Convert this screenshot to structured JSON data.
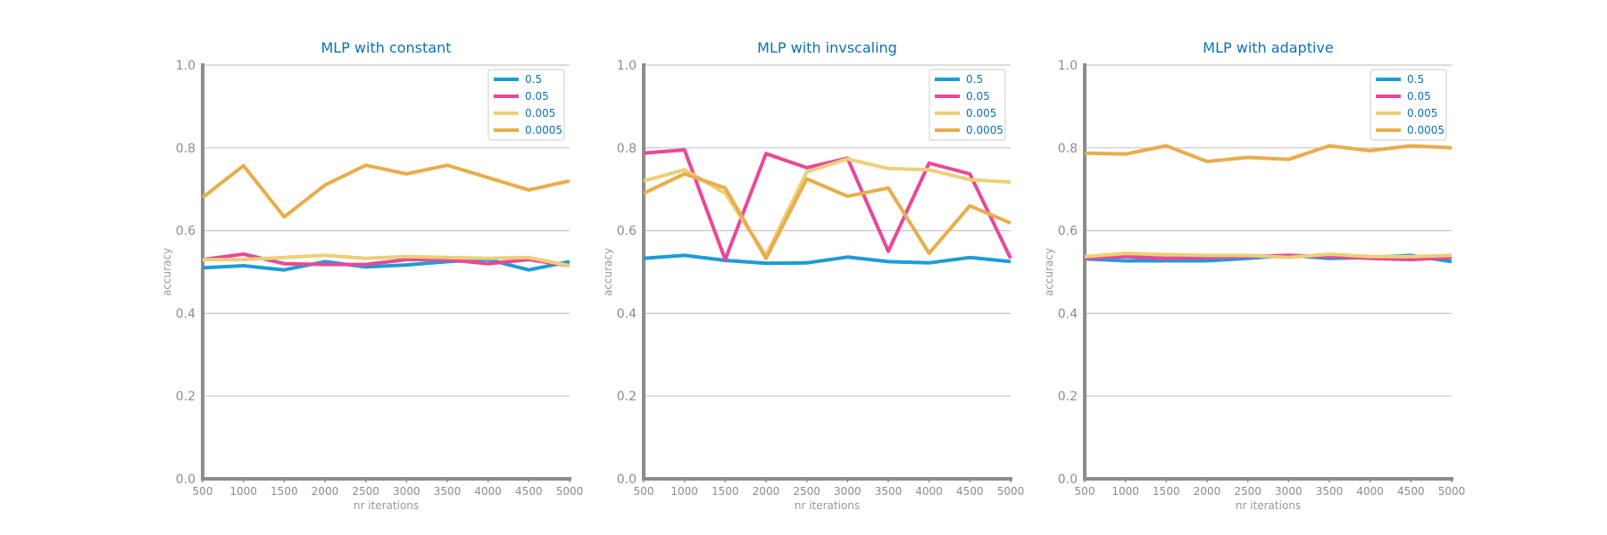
{
  "chart_data": [
    {
      "type": "line",
      "title": "MLP with constant",
      "xlabel": "nr iterations",
      "ylabel": "accuracy",
      "x": [
        500,
        1000,
        1500,
        2000,
        2500,
        3000,
        3500,
        4000,
        4500,
        5000
      ],
      "xlim": [
        500,
        5000
      ],
      "ylim": [
        0,
        1
      ],
      "yticks": [
        "0.0",
        "0.2",
        "0.4",
        "0.6",
        "0.8",
        "1.0"
      ],
      "grid": "horizontal",
      "legend": "top-right",
      "series": [
        {
          "name": "0.5",
          "color": "#1f9bd7",
          "values": [
            0.51,
            0.515,
            0.505,
            0.525,
            0.512,
            0.517,
            0.525,
            0.53,
            0.505,
            0.525
          ]
        },
        {
          "name": "0.05",
          "color": "#e8489a",
          "values": [
            0.53,
            0.543,
            0.52,
            0.518,
            0.518,
            0.53,
            0.53,
            0.52,
            0.53,
            0.515
          ]
        },
        {
          "name": "0.005",
          "color": "#ebd077",
          "values": [
            0.53,
            0.53,
            0.535,
            0.54,
            0.533,
            0.537,
            0.535,
            0.533,
            0.535,
            0.515
          ]
        },
        {
          "name": "0.0005",
          "color": "#e8ad4b",
          "values": [
            0.68,
            0.757,
            0.633,
            0.71,
            0.758,
            0.737,
            0.758,
            0.728,
            0.698,
            0.72
          ]
        }
      ]
    },
    {
      "type": "line",
      "title": "MLP with invscaling",
      "xlabel": "nr iterations",
      "ylabel": "accuracy",
      "x": [
        500,
        1000,
        1500,
        2000,
        2500,
        3000,
        3500,
        4000,
        4500,
        5000
      ],
      "xlim": [
        500,
        5000
      ],
      "ylim": [
        0,
        1
      ],
      "yticks": [
        "0.0",
        "0.2",
        "0.4",
        "0.6",
        "0.8",
        "1.0"
      ],
      "grid": "horizontal",
      "legend": "top-right",
      "series": [
        {
          "name": "0.5",
          "color": "#1f9bd7",
          "values": [
            0.533,
            0.54,
            0.528,
            0.521,
            0.522,
            0.536,
            0.525,
            0.522,
            0.535,
            0.525
          ]
        },
        {
          "name": "0.05",
          "color": "#e8489a",
          "values": [
            0.787,
            0.795,
            0.53,
            0.786,
            0.752,
            0.775,
            0.55,
            0.763,
            0.737,
            0.533
          ]
        },
        {
          "name": "0.005",
          "color": "#ebd077",
          "values": [
            0.72,
            0.747,
            0.69,
            0.54,
            0.742,
            0.773,
            0.75,
            0.747,
            0.723,
            0.717
          ]
        },
        {
          "name": "0.0005",
          "color": "#e8ad4b",
          "values": [
            0.69,
            0.737,
            0.703,
            0.533,
            0.725,
            0.683,
            0.703,
            0.545,
            0.66,
            0.618
          ]
        }
      ]
    },
    {
      "type": "line",
      "title": "MLP with adaptive",
      "xlabel": "nr iterations",
      "ylabel": "accuracy",
      "x": [
        500,
        1000,
        1500,
        2000,
        2500,
        3000,
        3500,
        4000,
        4500,
        5000
      ],
      "xlim": [
        500,
        5000
      ],
      "ylim": [
        0,
        1
      ],
      "yticks": [
        "0.0",
        "0.2",
        "0.4",
        "0.6",
        "0.8",
        "1.0"
      ],
      "grid": "horizontal",
      "legend": "top-right",
      "series": [
        {
          "name": "0.5",
          "color": "#1f9bd7",
          "values": [
            0.532,
            0.527,
            0.527,
            0.527,
            0.533,
            0.54,
            0.533,
            0.535,
            0.54,
            0.525
          ]
        },
        {
          "name": "0.05",
          "color": "#e8489a",
          "values": [
            0.533,
            0.537,
            0.533,
            0.535,
            0.537,
            0.54,
            0.537,
            0.533,
            0.53,
            0.535
          ]
        },
        {
          "name": "0.005",
          "color": "#ebd077",
          "values": [
            0.537,
            0.545,
            0.542,
            0.54,
            0.54,
            0.535,
            0.543,
            0.537,
            0.537,
            0.54
          ]
        },
        {
          "name": "0.0005",
          "color": "#e8ad4b",
          "values": [
            0.787,
            0.785,
            0.805,
            0.767,
            0.777,
            0.772,
            0.805,
            0.793,
            0.805,
            0.8
          ]
        }
      ]
    }
  ]
}
